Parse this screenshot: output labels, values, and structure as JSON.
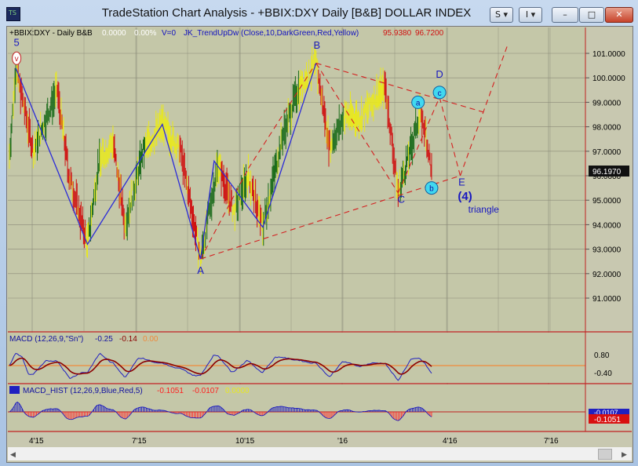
{
  "window": {
    "title": "TradeStation Chart Analysis - +BBIX:DXY Daily [B&B] DOLLAR INDEX",
    "buttons": {
      "s_label": "S",
      "i_label": "I",
      "min_label": "–",
      "max_label": "□",
      "close_label": "✕"
    }
  },
  "colors": {
    "plot_bg": "#c4c7a8",
    "frame_bg": "#c8c8b0",
    "grid": "#8a8a78",
    "bar_up": "#1a6b1a",
    "bar_down": "#d01010",
    "bar_neutral": "#e8e820",
    "wave_line": "#2b2bd8",
    "trend_line": "#d42020",
    "panel_border": "#c02020",
    "macd": "#2020c0",
    "signal": "#8b0000",
    "hist_up": "#2020c0",
    "hist_down": "#ff3030"
  },
  "header": {
    "symbol": "+BBIX:DXY - Daily  B&B",
    "val1": "0.0000",
    "val2": "0.00%",
    "v": "V=0",
    "indicator": "JK_TrendUpDw (Close,10,DarkGreen,Red,Yellow)",
    "val3": "95.9380",
    "val4": "96.7200"
  },
  "chart_data": {
    "type": "bar",
    "title": "+BBIX:DXY Daily [B&B] DOLLAR INDEX",
    "price_axis": {
      "ticks": [
        "101.0000",
        "100.0000",
        "99.0000",
        "98.0000",
        "97.0000",
        "96.0000",
        "95.0000",
        "94.0000",
        "93.0000",
        "92.0000",
        "91.0000"
      ],
      "current_price": "96.1970",
      "range": [
        90.0,
        102.0
      ]
    },
    "time_axis": {
      "ticks": [
        "4'15",
        "7'15",
        "10'15",
        "'16",
        "4'16",
        "7'16"
      ]
    },
    "price_series": [
      {
        "t": 0,
        "p": 96.8
      },
      {
        "t": 8,
        "p": 100.4
      },
      {
        "t": 30,
        "p": 97.0
      },
      {
        "t": 60,
        "p": 99.5
      },
      {
        "t": 75,
        "p": 96.0
      },
      {
        "t": 98,
        "p": 93.2
      },
      {
        "t": 112,
        "p": 96.5
      },
      {
        "t": 130,
        "p": 97.4
      },
      {
        "t": 145,
        "p": 94.0
      },
      {
        "t": 168,
        "p": 97.0
      },
      {
        "t": 192,
        "p": 98.1
      },
      {
        "t": 215,
        "p": 97.0
      },
      {
        "t": 240,
        "p": 92.6
      },
      {
        "t": 262,
        "p": 96.5
      },
      {
        "t": 282,
        "p": 94.5
      },
      {
        "t": 300,
        "p": 96.0
      },
      {
        "t": 318,
        "p": 93.9
      },
      {
        "t": 342,
        "p": 97.5
      },
      {
        "t": 362,
        "p": 99.5
      },
      {
        "t": 385,
        "p": 100.6
      },
      {
        "t": 402,
        "p": 97.2
      },
      {
        "t": 422,
        "p": 98.5
      },
      {
        "t": 440,
        "p": 98.3
      },
      {
        "t": 462,
        "p": 99.3
      },
      {
        "t": 472,
        "p": 99.6
      },
      {
        "t": 488,
        "p": 95.3
      },
      {
        "t": 505,
        "p": 97.2
      },
      {
        "t": 515,
        "p": 98.6
      },
      {
        "t": 522,
        "p": 97.8
      },
      {
        "t": 530,
        "p": 96.2
      }
    ],
    "wave_line": [
      {
        "t": 8,
        "p": 100.4
      },
      {
        "t": 98,
        "p": 93.2
      },
      {
        "t": 192,
        "p": 98.1
      },
      {
        "t": 240,
        "p": 92.6
      },
      {
        "t": 257,
        "p": 96.6
      },
      {
        "t": 318,
        "p": 93.9
      },
      {
        "t": 385,
        "p": 100.6
      }
    ],
    "triangle_lines": [
      [
        {
          "t": 240,
          "p": 92.6
        },
        {
          "t": 566,
          "p": 96.0
        }
      ],
      [
        {
          "t": 385,
          "p": 100.6
        },
        {
          "t": 595,
          "p": 98.6
        }
      ],
      [
        {
          "t": 385,
          "p": 100.6
        },
        {
          "t": 488,
          "p": 95.3
        }
      ],
      [
        {
          "t": 488,
          "p": 95.3
        },
        {
          "t": 540,
          "p": 99.2
        }
      ],
      [
        {
          "t": 540,
          "p": 99.2
        },
        {
          "t": 566,
          "p": 96.0
        }
      ],
      [
        {
          "t": 566,
          "p": 96.0
        },
        {
          "t": 625,
          "p": 101.3
        }
      ],
      [
        {
          "t": 240,
          "p": 92.6
        },
        {
          "t": 300,
          "p": 96.3
        }
      ],
      [
        {
          "t": 300,
          "p": 96.3
        },
        {
          "t": 385,
          "p": 100.6
        }
      ]
    ],
    "labels": [
      {
        "text": "5",
        "t": 9,
        "p": 101.3,
        "style": "wave"
      },
      {
        "text": "v",
        "t": 9,
        "p": 100.8,
        "style": "circle-red"
      },
      {
        "text": "A",
        "t": 240,
        "p": 92.0,
        "style": "wave"
      },
      {
        "text": "B",
        "t": 386,
        "p": 101.2,
        "style": "wave"
      },
      {
        "text": "C",
        "t": 492,
        "p": 94.9,
        "style": "wave"
      },
      {
        "text": "D",
        "t": 540,
        "p": 100.0,
        "style": "wave"
      },
      {
        "text": "E",
        "t": 568,
        "p": 95.6,
        "style": "wave"
      },
      {
        "text": "(4)",
        "t": 572,
        "p": 95.0,
        "style": "wave-bold"
      },
      {
        "text": "triangle",
        "t": 576,
        "p": 94.5,
        "style": "wave-small"
      },
      {
        "text": "a",
        "t": 513,
        "p": 99.0,
        "style": "circle-cyan"
      },
      {
        "text": "b",
        "t": 530,
        "p": 95.5,
        "style": "circle-cyan"
      },
      {
        "text": "c",
        "t": 540,
        "p": 99.4,
        "style": "circle-cyan"
      }
    ]
  },
  "macd": {
    "label": "MACD (12,26,9,\"Sn\")",
    "v1": "-0.25",
    "v2": "-0.14",
    "v3": "0.00",
    "ticks": [
      "0.80",
      "-0.40"
    ]
  },
  "hist": {
    "label": "MACD_HIST (12,26,9,Blue,Red,5)",
    "v1": "-0.1051",
    "v2": "-0.0107",
    "v3": "0.0000",
    "value_box": "-0.1051",
    "value_box_back": "-0.0107"
  }
}
